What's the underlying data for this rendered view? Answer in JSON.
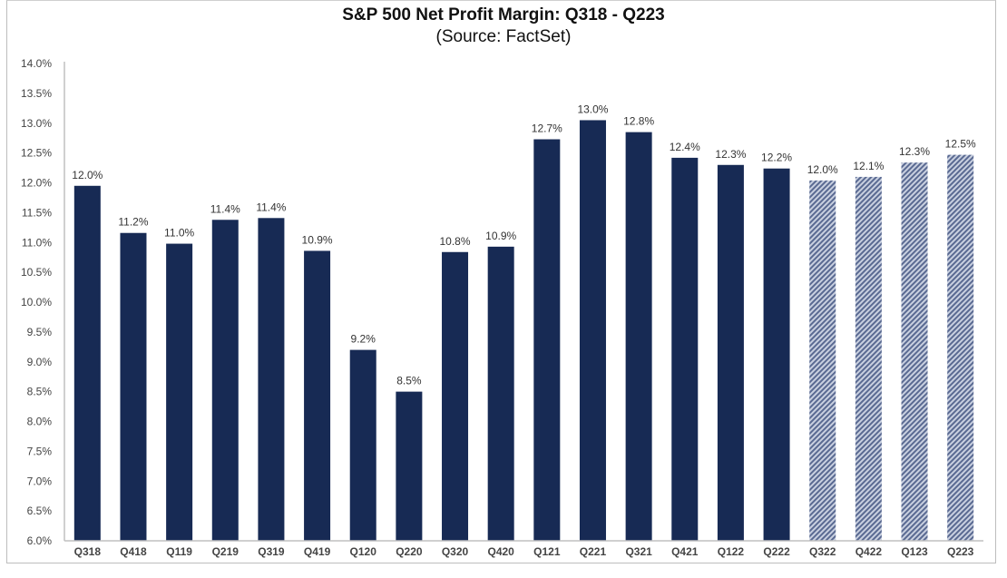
{
  "chart_data": {
    "type": "bar",
    "title": "S&P 500 Net Profit Margin: Q318 - Q223",
    "subtitle": "(Source: FactSet)",
    "xlabel": "",
    "ylabel": "",
    "ylim": [
      6.0,
      14.0
    ],
    "yticks": [
      "6.0%",
      "6.5%",
      "7.0%",
      "7.5%",
      "8.0%",
      "8.5%",
      "9.0%",
      "9.5%",
      "10.0%",
      "10.5%",
      "11.0%",
      "11.5%",
      "12.0%",
      "12.5%",
      "13.0%",
      "13.5%",
      "14.0%"
    ],
    "ytick_values": [
      6.0,
      6.5,
      7.0,
      7.5,
      8.0,
      8.5,
      9.0,
      9.5,
      10.0,
      10.5,
      11.0,
      11.5,
      12.0,
      12.5,
      13.0,
      13.5,
      14.0
    ],
    "grid": false,
    "legend": "none",
    "categories": [
      "Q318",
      "Q418",
      "Q119",
      "Q219",
      "Q319",
      "Q419",
      "Q120",
      "Q220",
      "Q320",
      "Q420",
      "Q121",
      "Q221",
      "Q321",
      "Q421",
      "Q122",
      "Q222",
      "Q322",
      "Q422",
      "Q123",
      "Q223"
    ],
    "values": [
      11.95,
      11.16,
      10.98,
      11.38,
      11.41,
      10.86,
      9.2,
      8.5,
      10.84,
      10.93,
      12.73,
      13.05,
      12.85,
      12.42,
      12.3,
      12.24,
      12.04,
      12.1,
      12.34,
      12.47
    ],
    "labels": [
      "12.0%",
      "11.2%",
      "11.0%",
      "11.4%",
      "11.4%",
      "10.9%",
      "9.2%",
      "8.5%",
      "10.8%",
      "10.9%",
      "12.7%",
      "13.0%",
      "12.8%",
      "12.4%",
      "12.3%",
      "12.2%",
      "12.0%",
      "12.1%",
      "12.3%",
      "12.5%"
    ],
    "estimate": [
      false,
      false,
      false,
      false,
      false,
      false,
      false,
      false,
      false,
      false,
      false,
      false,
      false,
      false,
      false,
      false,
      true,
      true,
      true,
      true
    ],
    "colors": {
      "actual": "#172a54",
      "estimate_stripe": "#5a6a92",
      "estimate_bg": "#c9d0e0",
      "axis": "#c0c0c0"
    }
  }
}
